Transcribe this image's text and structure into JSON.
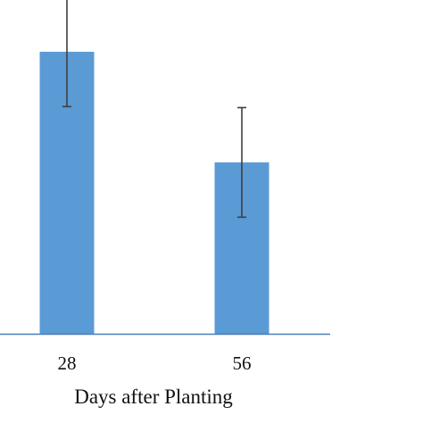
{
  "chart_data": {
    "type": "bar",
    "categories": [
      "28",
      "56"
    ],
    "values": [
      28.3,
      17.2
    ],
    "error": [
      5.5,
      5.5
    ],
    "ylim": [
      0,
      32.6
    ],
    "xlabel": "Days after Planting",
    "ylabel": "",
    "title": "",
    "grid": false,
    "legend": "none",
    "colors": {
      "bar": "#5b9bd5",
      "axis": "#4a7ebb",
      "error_bar": "#3f3f3f"
    }
  }
}
